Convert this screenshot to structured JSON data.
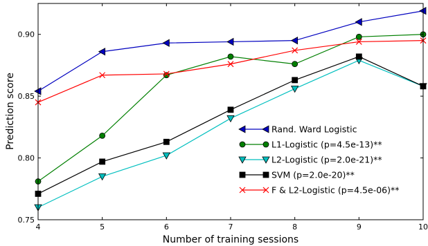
{
  "chart_data": {
    "type": "line",
    "xlabel": "Number of training sessions",
    "ylabel": "Prediction score",
    "xlim": [
      4,
      10
    ],
    "ylim": [
      0.75,
      0.925
    ],
    "x_ticks": [
      4,
      5,
      6,
      7,
      8,
      9,
      10
    ],
    "x_tick_labels": [
      "4",
      "5",
      "6",
      "7",
      "8",
      "9",
      "10"
    ],
    "y_ticks": [
      0.75,
      0.8,
      0.85,
      0.9
    ],
    "y_tick_labels": [
      "0.75",
      "0.80",
      "0.85",
      "0.90"
    ],
    "grid": false,
    "legend_position": "lower-right",
    "x": [
      4,
      5,
      6,
      7,
      8,
      9,
      10
    ],
    "series": [
      {
        "name": "Rand. Ward Logistic",
        "color": "#0000bf",
        "marker": "triangle-left",
        "values": [
          0.854,
          0.886,
          0.893,
          0.894,
          0.895,
          0.91,
          0.919
        ]
      },
      {
        "name": "L1-Logistic (p=4.5e-13)**",
        "color": "#007f00",
        "marker": "circle",
        "values": [
          0.781,
          0.818,
          0.867,
          0.882,
          0.876,
          0.898,
          0.9
        ]
      },
      {
        "name": "L2-Logistic (p=2.0e-21)**",
        "color": "#00bfbf",
        "marker": "triangle-down",
        "values": [
          0.76,
          0.785,
          0.802,
          0.832,
          0.856,
          0.879,
          0.858
        ]
      },
      {
        "name": "SVM (p=2.0e-20)**",
        "color": "#000000",
        "marker": "square",
        "values": [
          0.771,
          0.797,
          0.813,
          0.839,
          0.863,
          0.882,
          0.858
        ]
      },
      {
        "name": "F & L2-Logistic (p=4.5e-06)**",
        "color": "#ff0000",
        "marker": "x",
        "values": [
          0.845,
          0.867,
          0.868,
          0.876,
          0.887,
          0.894,
          0.895
        ]
      }
    ]
  }
}
